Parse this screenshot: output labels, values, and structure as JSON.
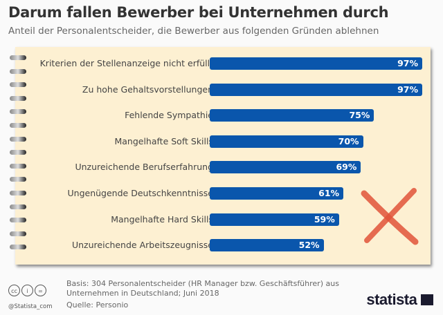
{
  "chart_data": {
    "type": "bar",
    "orientation": "horizontal",
    "title": "Darum fallen Bewerber bei Unternehmen durch",
    "subtitle": "Anteil der Personalentscheider, die Bewerber aus folgenden Gründen ablehnen",
    "categories": [
      "Kriterien der Stellenanzeige nicht erfüllt",
      "Zu hohe Gehaltsvorstellungen",
      "Fehlende Sympathie",
      "Mangelhafte Soft Skills",
      "Unzureichende Berufserfahrung",
      "Ungenügende Deutschkenntnisse",
      "Mangelhafte Hard Skills",
      "Unzureichende Arbeitszeugnisse"
    ],
    "values": [
      97,
      97,
      75,
      70,
      69,
      61,
      59,
      52
    ],
    "value_labels": [
      "97%",
      "97%",
      "75%",
      "70%",
      "69%",
      "61%",
      "59%",
      "52%"
    ],
    "unit": "%",
    "xlim": [
      0,
      100
    ],
    "bar_color": "#0a56ac",
    "grid": false
  },
  "footer": {
    "basis_line1": "Basis: 304 Personalentscheider (HR Manager bzw. Geschäftsführer) aus",
    "basis_line2": "Unternehmen in Deutschland; Juni 2018",
    "source": "Quelle: Personio",
    "handle": "@Statista_com",
    "logo": "statista"
  },
  "decoration": {
    "cross_color": "#e0533a"
  }
}
